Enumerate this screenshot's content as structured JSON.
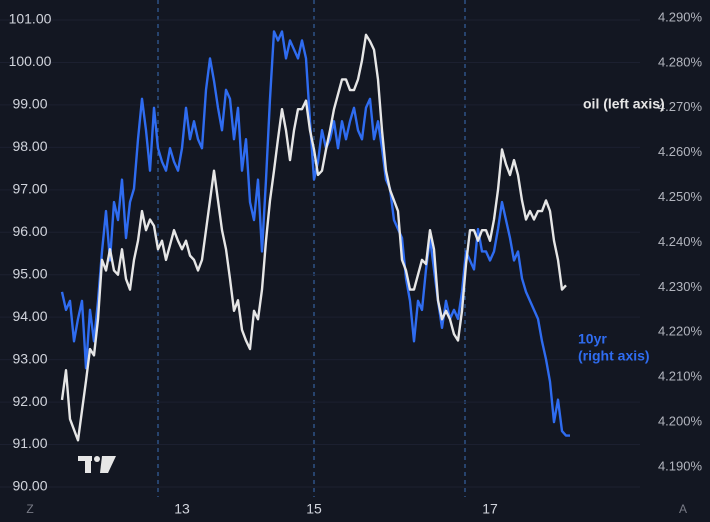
{
  "chart_data": {
    "type": "line",
    "categories": [
      null,
      null,
      null,
      null,
      null,
      null,
      null,
      null,
      null,
      null,
      null,
      null,
      null,
      null,
      null,
      null,
      null,
      null,
      null,
      null,
      null,
      null,
      null,
      null,
      null,
      null,
      null,
      null,
      null,
      null,
      "13",
      null,
      null,
      null,
      null,
      null,
      null,
      null,
      null,
      null,
      null,
      null,
      null,
      null,
      null,
      null,
      null,
      null,
      null,
      null,
      null,
      null,
      null,
      null,
      null,
      null,
      null,
      null,
      null,
      null,
      null,
      null,
      null,
      "15",
      null,
      null,
      null,
      null,
      null,
      null,
      null,
      null,
      null,
      null,
      null,
      null,
      null,
      null,
      null,
      null,
      null,
      null,
      null,
      null,
      null,
      null,
      null,
      null,
      null,
      null,
      null,
      null,
      null,
      null,
      null,
      null,
      null,
      null,
      null,
      null,
      null,
      null,
      null,
      null,
      null,
      null,
      null,
      "17",
      null,
      null,
      null,
      null,
      null,
      null,
      null,
      null,
      null,
      null,
      null,
      null,
      null,
      null,
      null,
      null,
      null,
      null,
      null,
      null
    ],
    "series": [
      {
        "color": "#2f6cf0",
        "axis": "y2",
        "values": [
          4.229,
          4.225,
          4.227,
          4.218,
          4.223,
          4.227,
          4.212,
          4.225,
          4.218,
          4.227,
          4.238,
          4.247,
          4.236,
          4.249,
          4.245,
          4.254,
          4.241,
          4.249,
          4.252,
          4.263,
          4.272,
          4.265,
          4.256,
          4.27,
          4.261,
          4.258,
          4.256,
          4.261,
          4.258,
          4.256,
          4.261,
          4.27,
          4.263,
          4.267,
          4.263,
          4.261,
          4.274,
          4.281,
          4.276,
          4.27,
          4.265,
          4.274,
          4.272,
          4.263,
          4.27,
          4.256,
          4.263,
          4.249,
          4.245,
          4.254,
          4.238,
          4.254,
          4.272,
          4.287,
          4.285,
          4.287,
          4.281,
          4.285,
          4.283,
          4.281,
          4.285,
          4.281,
          4.267,
          4.254,
          4.258,
          4.265,
          4.261,
          4.263,
          4.267,
          4.261,
          4.267,
          4.263,
          4.267,
          4.27,
          4.265,
          4.263,
          4.27,
          4.272,
          4.263,
          4.267,
          4.261,
          4.254,
          4.252,
          4.245,
          4.243,
          4.241,
          4.232,
          4.227,
          4.218,
          4.227,
          4.225,
          4.234,
          4.241,
          4.234,
          4.227,
          4.221,
          4.227,
          4.223,
          4.225,
          4.223,
          4.229,
          4.238,
          4.236,
          4.234,
          4.243,
          4.238,
          4.238,
          4.236,
          4.238,
          4.243,
          4.249,
          4.245,
          4.241,
          4.236,
          4.238,
          4.232,
          4.229,
          4.227,
          4.225,
          4.223,
          4.218,
          4.214,
          4.209,
          4.2,
          4.205,
          4.198,
          4.197,
          4.197
        ]
      },
      {
        "color": "#e6e6e6",
        "values": [
          92.05,
          92.75,
          91.6,
          91.35,
          91.1,
          91.8,
          92.5,
          93.25,
          93.1,
          93.95,
          95.35,
          95.1,
          95.6,
          95.1,
          95.0,
          95.6,
          94.9,
          94.65,
          95.35,
          95.8,
          96.5,
          96.05,
          96.3,
          96.15,
          95.6,
          95.8,
          95.35,
          95.7,
          96.05,
          95.8,
          95.6,
          95.8,
          95.45,
          95.35,
          95.1,
          95.35,
          96.05,
          96.75,
          97.45,
          96.75,
          96.05,
          95.6,
          94.9,
          94.15,
          94.4,
          93.7,
          93.45,
          93.25,
          94.15,
          93.95,
          94.65,
          95.8,
          96.75,
          97.45,
          98.2,
          98.9,
          98.4,
          97.7,
          98.4,
          98.9,
          98.9,
          99.1,
          98.4,
          97.95,
          97.35,
          97.45,
          97.95,
          98.4,
          98.9,
          99.25,
          99.6,
          99.6,
          99.35,
          99.35,
          99.6,
          100.05,
          100.65,
          100.5,
          100.3,
          99.6,
          98.4,
          97.45,
          97.0,
          96.75,
          96.5,
          95.35,
          95.1,
          94.65,
          94.65,
          95.0,
          95.35,
          95.25,
          96.05,
          95.6,
          94.4,
          93.95,
          94.15,
          93.95,
          93.6,
          93.45,
          94.15,
          95.25,
          96.05,
          96.05,
          95.8,
          96.05,
          96.05,
          95.8,
          96.3,
          97.0,
          97.95,
          97.6,
          97.35,
          97.7,
          97.35,
          96.75,
          96.3,
          96.5,
          96.3,
          96.5,
          96.5,
          96.75,
          96.5,
          95.8,
          95.35,
          94.65,
          94.75,
          null
        ]
      }
    ],
    "ylim": [
      90,
      101
    ],
    "yticks": [
      {
        "value": 90,
        "label": "90.00"
      },
      {
        "value": 91,
        "label": "91.00"
      },
      {
        "value": 92,
        "label": "92.00"
      },
      {
        "value": 93,
        "label": "93.00"
      },
      {
        "value": 94,
        "label": "94.00"
      },
      {
        "value": 95,
        "label": "95.00"
      },
      {
        "value": 96,
        "label": "96.00"
      },
      {
        "value": 97,
        "label": "97.00"
      },
      {
        "value": 98,
        "label": "98.00"
      },
      {
        "value": 99,
        "label": "99.00"
      },
      {
        "value": 100,
        "label": "100.00"
      },
      {
        "value": 101,
        "label": "101.00"
      }
    ],
    "y2lim": [
      4.19,
      4.29
    ],
    "y2ticks": [
      {
        "value": 4.19,
        "label": "4.190%"
      },
      {
        "value": 4.2,
        "label": "4.200%"
      },
      {
        "value": 4.21,
        "label": "4.210%"
      },
      {
        "value": 4.22,
        "label": "4.220%"
      },
      {
        "value": 4.23,
        "label": "4.230%"
      },
      {
        "value": 4.24,
        "label": "4.240%"
      },
      {
        "value": 4.25,
        "label": "4.250%"
      },
      {
        "value": 4.26,
        "label": "4.260%"
      },
      {
        "value": 4.27,
        "label": "4.270%"
      },
      {
        "value": 4.28,
        "label": "4.280%"
      },
      {
        "value": 4.29,
        "label": "4.290%"
      }
    ],
    "grid": true,
    "annotations": [
      "oil (left axis)",
      "10yr",
      "(right axis)"
    ],
    "buttons": [
      "Z",
      "A"
    ]
  }
}
